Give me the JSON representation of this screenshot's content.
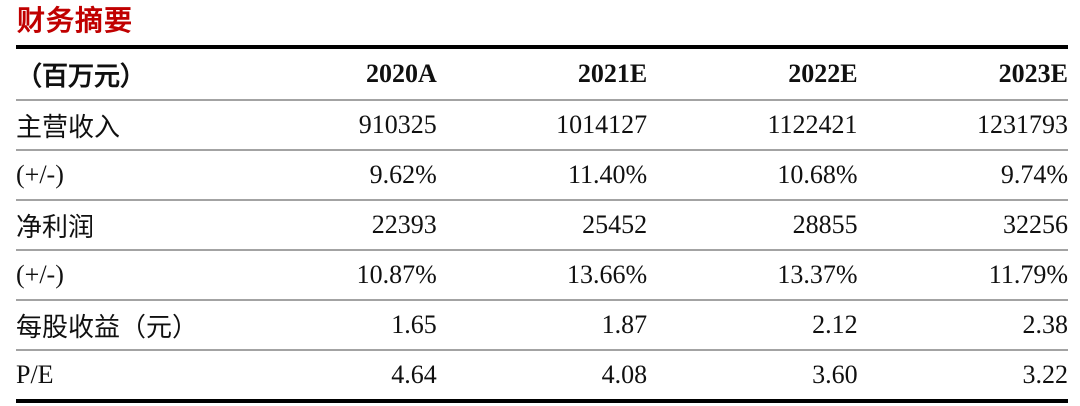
{
  "title": "财务摘要",
  "colors": {
    "title_red": "#c00000",
    "thick_rule": "#000000",
    "thin_rule": "#a3a3a3",
    "text": "#101010",
    "background": "#ffffff"
  },
  "table": {
    "unit_header": "（百万元）",
    "columns": [
      "2020A",
      "2021E",
      "2022E",
      "2023E"
    ],
    "rows": [
      {
        "label": "主营收入",
        "values": [
          "910325",
          "1014127",
          "1122421",
          "1231793"
        ]
      },
      {
        "label": "(+/-)",
        "values": [
          "9.62%",
          "11.40%",
          "10.68%",
          "9.74%"
        ]
      },
      {
        "label": "净利润",
        "values": [
          "22393",
          "25452",
          "28855",
          "32256"
        ]
      },
      {
        "label": "(+/-)",
        "values": [
          "10.87%",
          "13.66%",
          "13.37%",
          "11.79%"
        ]
      },
      {
        "label": "每股收益（元）",
        "values": [
          "1.65",
          "1.87",
          "2.12",
          "2.38"
        ]
      },
      {
        "label": "P/E",
        "values": [
          "4.64",
          "4.08",
          "3.60",
          "3.22"
        ]
      }
    ]
  }
}
